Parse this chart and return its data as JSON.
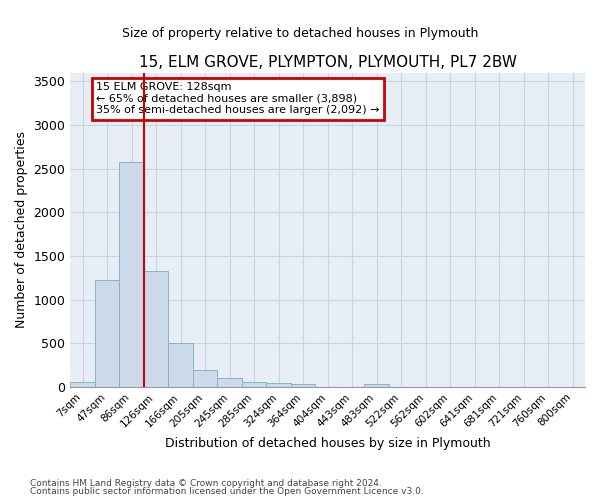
{
  "title": "15, ELM GROVE, PLYMPTON, PLYMOUTH, PL7 2BW",
  "subtitle": "Size of property relative to detached houses in Plymouth",
  "xlabel": "Distribution of detached houses by size in Plymouth",
  "ylabel": "Number of detached properties",
  "bin_labels": [
    "7sqm",
    "47sqm",
    "86sqm",
    "126sqm",
    "166sqm",
    "205sqm",
    "245sqm",
    "285sqm",
    "324sqm",
    "364sqm",
    "404sqm",
    "443sqm",
    "483sqm",
    "522sqm",
    "562sqm",
    "602sqm",
    "641sqm",
    "681sqm",
    "721sqm",
    "760sqm",
    "800sqm"
  ],
  "bar_values": [
    60,
    1220,
    2580,
    1330,
    500,
    190,
    105,
    55,
    50,
    35,
    0,
    0,
    35,
    0,
    0,
    0,
    0,
    0,
    0,
    0,
    0
  ],
  "bar_color": "#ccdaea",
  "bar_edge_color": "#8ab0cc",
  "grid_color": "#c8d4e0",
  "background_color": "#e8eef5",
  "property_line_color": "#cc0000",
  "annotation_line1": "15 ELM GROVE: 128sqm",
  "annotation_line2": "← 65% of detached houses are smaller (3,898)",
  "annotation_line3": "35% of semi-detached houses are larger (2,092) →",
  "annotation_box_color": "#cc0000",
  "ylim": [
    0,
    3600
  ],
  "yticks": [
    0,
    500,
    1000,
    1500,
    2000,
    2500,
    3000,
    3500
  ],
  "footnote1": "Contains HM Land Registry data © Crown copyright and database right 2024.",
  "footnote2": "Contains public sector information licensed under the Open Government Licence v3.0."
}
